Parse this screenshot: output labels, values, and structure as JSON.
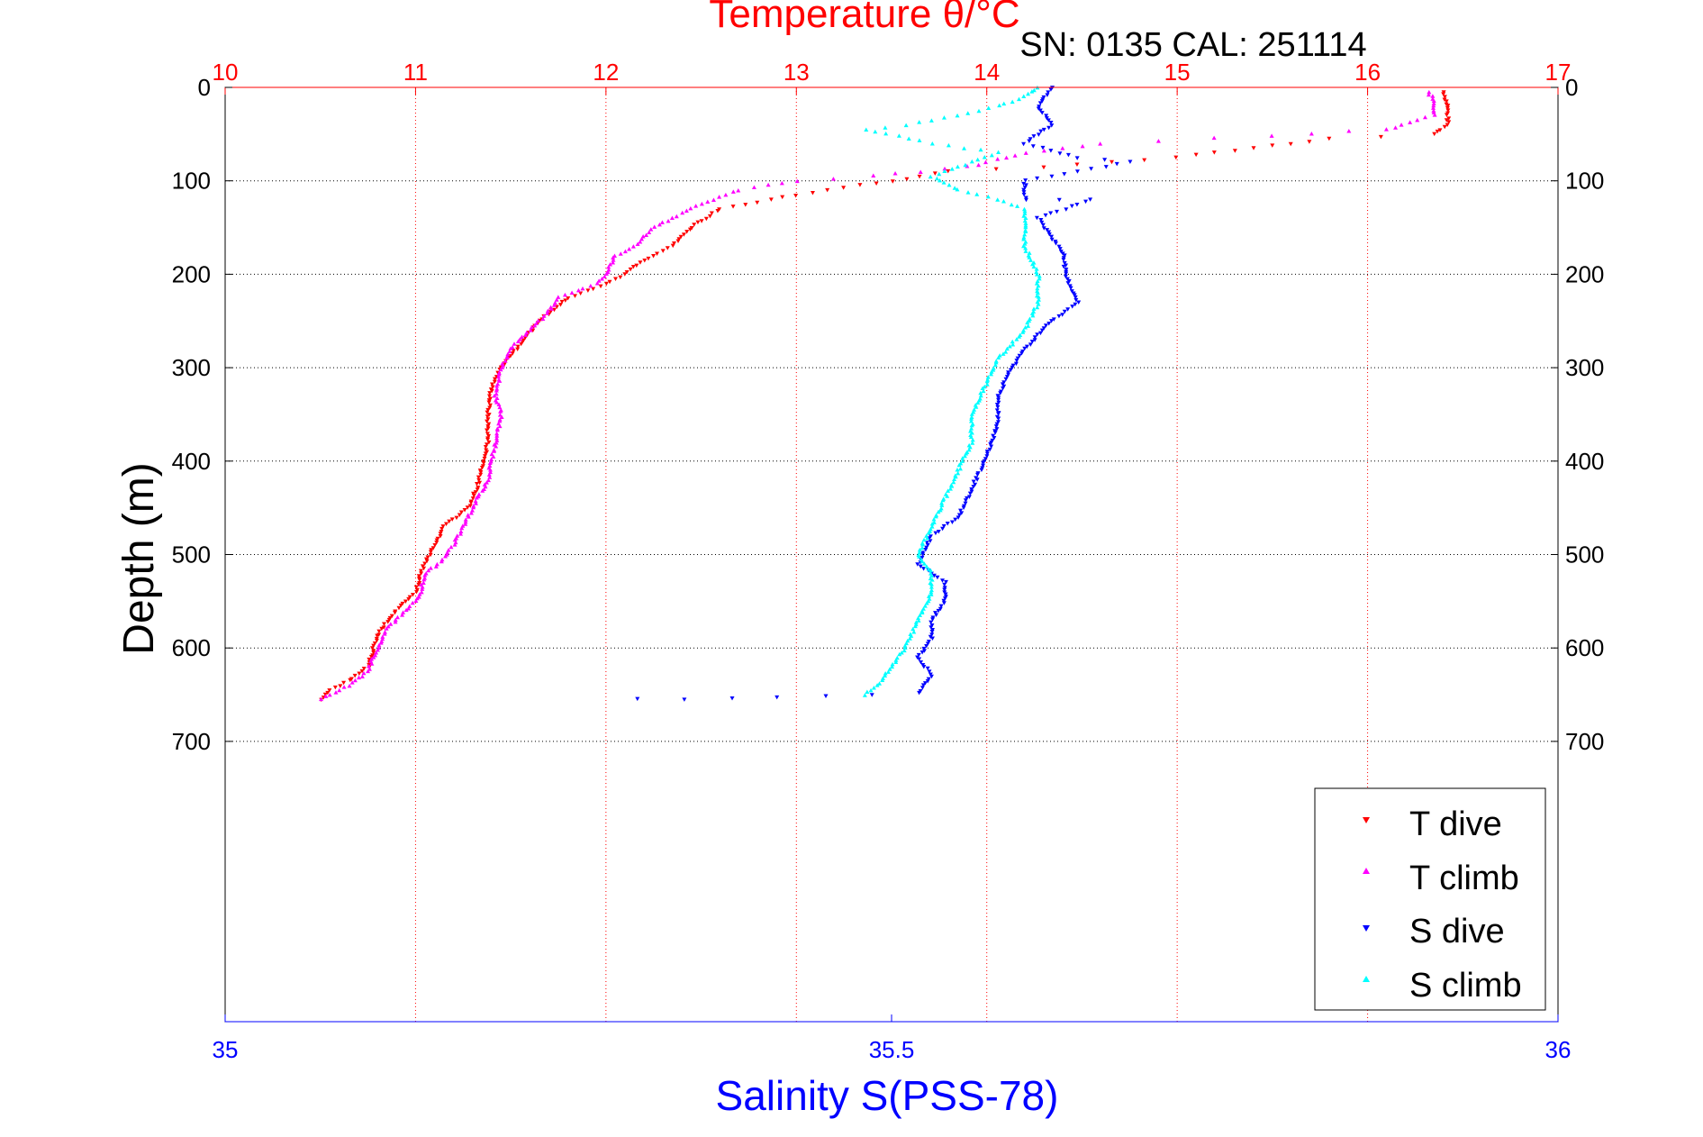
{
  "chart_data": {
    "type": "scatter",
    "title": "Temperature θ/°C",
    "subtitle": "SN: 0135  CAL: 251114",
    "ylabel": "Depth (m)",
    "xlabel_bottom": "Salinity S(PSS-78)",
    "x_top": {
      "label": "Temperature θ/°C",
      "range": [
        10,
        17
      ],
      "ticks": [
        "10",
        "11",
        "12",
        "13",
        "14",
        "15",
        "16",
        "17"
      ],
      "color": "#ff0000"
    },
    "x_bottom": {
      "label": "Salinity S(PSS-78)",
      "range": [
        35,
        36
      ],
      "ticks": [
        "35",
        "35.5",
        "36"
      ],
      "color": "#0000ff"
    },
    "y": {
      "range": [
        0,
        1000
      ],
      "reversed": true,
      "ticks": [
        "0",
        "100",
        "200",
        "300",
        "400",
        "500",
        "600",
        "700"
      ]
    },
    "grid": true,
    "legend": {
      "position": "bottom-right",
      "entries": [
        "T dive",
        "T climb",
        "S dive",
        "S climb"
      ]
    },
    "colors": {
      "t_dive": "#ff0000",
      "t_climb": "#ff00ff",
      "s_dive": "#0000ff",
      "s_climb": "#00ffff"
    },
    "series": [
      {
        "name": "T dive",
        "axis": "temperature",
        "color": "#ff0000",
        "points": [
          [
            16.4,
            5
          ],
          [
            16.42,
            20
          ],
          [
            16.42,
            40
          ],
          [
            16.35,
            50
          ],
          [
            15.8,
            55
          ],
          [
            15.0,
            75
          ],
          [
            14.3,
            85
          ],
          [
            13.8,
            90
          ],
          [
            13.5,
            100
          ],
          [
            13.0,
            115
          ],
          [
            12.6,
            130
          ],
          [
            12.45,
            150
          ],
          [
            12.35,
            170
          ],
          [
            12.2,
            185
          ],
          [
            12.1,
            200
          ],
          [
            12.0,
            210
          ],
          [
            11.8,
            225
          ],
          [
            11.65,
            250
          ],
          [
            11.55,
            275
          ],
          [
            11.45,
            300
          ],
          [
            11.4,
            320
          ],
          [
            11.38,
            350
          ],
          [
            11.38,
            380
          ],
          [
            11.36,
            400
          ],
          [
            11.32,
            430
          ],
          [
            11.28,
            450
          ],
          [
            11.15,
            470
          ],
          [
            11.1,
            490
          ],
          [
            11.05,
            510
          ],
          [
            11.02,
            525
          ],
          [
            11.0,
            540
          ],
          [
            10.9,
            560
          ],
          [
            10.82,
            580
          ],
          [
            10.78,
            600
          ],
          [
            10.75,
            620
          ],
          [
            10.65,
            635
          ],
          [
            10.55,
            645
          ],
          [
            10.5,
            655
          ]
        ]
      },
      {
        "name": "T climb",
        "axis": "temperature",
        "color": "#ff00ff",
        "points": [
          [
            16.32,
            5
          ],
          [
            16.35,
            15
          ],
          [
            16.35,
            30
          ],
          [
            16.1,
            45
          ],
          [
            15.5,
            52
          ],
          [
            14.6,
            60
          ],
          [
            14.2,
            70
          ],
          [
            13.9,
            85
          ],
          [
            13.4,
            95
          ],
          [
            13.0,
            100
          ],
          [
            12.7,
            110
          ],
          [
            12.5,
            125
          ],
          [
            12.35,
            140
          ],
          [
            12.25,
            150
          ],
          [
            12.15,
            170
          ],
          [
            12.05,
            180
          ],
          [
            12.0,
            200
          ],
          [
            11.95,
            210
          ],
          [
            11.75,
            225
          ],
          [
            11.7,
            240
          ],
          [
            11.6,
            260
          ],
          [
            11.5,
            280
          ],
          [
            11.45,
            300
          ],
          [
            11.42,
            330
          ],
          [
            11.45,
            350
          ],
          [
            11.42,
            380
          ],
          [
            11.38,
            420
          ],
          [
            11.3,
            450
          ],
          [
            11.25,
            470
          ],
          [
            11.2,
            490
          ],
          [
            11.12,
            510
          ],
          [
            11.05,
            520
          ],
          [
            11.02,
            545
          ],
          [
            10.95,
            560
          ],
          [
            10.85,
            580
          ],
          [
            10.8,
            600
          ],
          [
            10.75,
            625
          ],
          [
            10.65,
            640
          ],
          [
            10.5,
            655
          ]
        ]
      },
      {
        "name": "S dive",
        "axis": "salinity",
        "color": "#0000ff",
        "points": [
          [
            35.62,
            0
          ],
          [
            35.61,
            20
          ],
          [
            35.62,
            40
          ],
          [
            35.6,
            60
          ],
          [
            35.64,
            75
          ],
          [
            35.68,
            80
          ],
          [
            35.6,
            100
          ],
          [
            35.6,
            120
          ],
          [
            35.65,
            120
          ],
          [
            35.61,
            140
          ],
          [
            35.62,
            160
          ],
          [
            35.63,
            180
          ],
          [
            35.63,
            200
          ],
          [
            35.64,
            230
          ],
          [
            35.62,
            250
          ],
          [
            35.6,
            280
          ],
          [
            35.59,
            300
          ],
          [
            35.58,
            330
          ],
          [
            35.58,
            360
          ],
          [
            35.57,
            400
          ],
          [
            35.56,
            430
          ],
          [
            35.55,
            460
          ],
          [
            35.53,
            480
          ],
          [
            35.52,
            510
          ],
          [
            35.54,
            530
          ],
          [
            35.54,
            550
          ],
          [
            35.53,
            570
          ],
          [
            35.53,
            590
          ],
          [
            35.52,
            610
          ],
          [
            35.53,
            630
          ],
          [
            35.52,
            648
          ],
          [
            35.45,
            652
          ],
          [
            35.38,
            654
          ],
          [
            35.31,
            655
          ]
        ]
      },
      {
        "name": "S climb",
        "axis": "salinity",
        "color": "#00ffff",
        "points": [
          [
            35.61,
            0
          ],
          [
            35.6,
            10
          ],
          [
            35.58,
            20
          ],
          [
            35.55,
            30
          ],
          [
            35.51,
            40
          ],
          [
            35.48,
            45
          ],
          [
            35.53,
            60
          ],
          [
            35.58,
            70
          ],
          [
            35.56,
            80
          ],
          [
            35.53,
            95
          ],
          [
            35.55,
            110
          ],
          [
            35.58,
            120
          ],
          [
            35.6,
            130
          ],
          [
            35.6,
            150
          ],
          [
            35.6,
            170
          ],
          [
            35.61,
            200
          ],
          [
            35.61,
            230
          ],
          [
            35.6,
            260
          ],
          [
            35.58,
            290
          ],
          [
            35.57,
            320
          ],
          [
            35.56,
            350
          ],
          [
            35.56,
            380
          ],
          [
            35.55,
            410
          ],
          [
            35.54,
            440
          ],
          [
            35.53,
            470
          ],
          [
            35.52,
            500
          ],
          [
            35.53,
            520
          ],
          [
            35.53,
            540
          ],
          [
            35.52,
            570
          ],
          [
            35.51,
            600
          ],
          [
            35.5,
            620
          ],
          [
            35.49,
            640
          ],
          [
            35.48,
            650
          ]
        ]
      }
    ]
  }
}
